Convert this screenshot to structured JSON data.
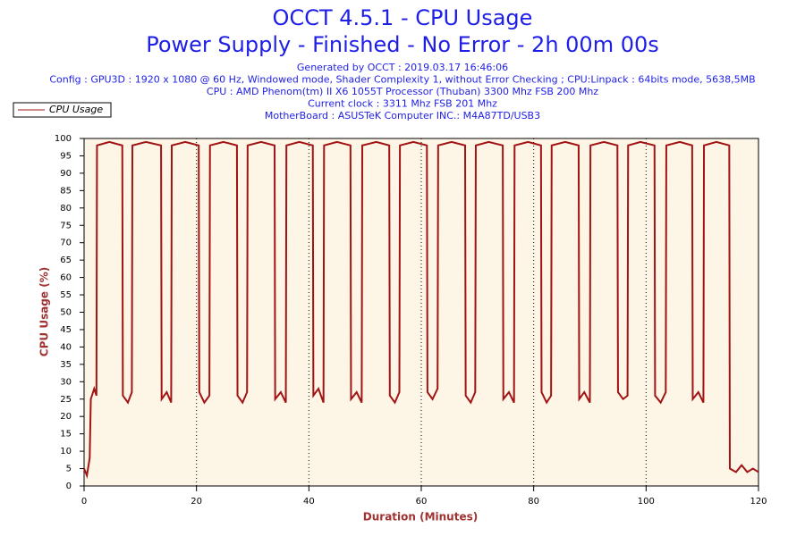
{
  "chart_data": {
    "type": "line",
    "title": "OCCT 4.5.1 - CPU Usage",
    "subtitle": "Power Supply - Finished - No Error - 2h 00m 00s",
    "info_lines": [
      "Generated by OCCT : 2019.03.17 16:46:06",
      "Config : GPU3D : 1920 x 1080 @ 60 Hz, Windowed mode, Shader Complexity 1, without Error Checking ; CPU:Linpack : 64bits mode, 5638,5MB",
      "CPU : AMD Phenom(tm) II X6 1055T Processor (Thuban) 3300 Mhz FSB 200 Mhz",
      "Current clock : 3311 Mhz FSB 201 Mhz",
      "MotherBoard : ASUSTeK Computer INC.: M4A87TD/USB3"
    ],
    "x_label": "Duration (Minutes)",
    "y_label": "CPU Usage (%)",
    "xlim": [
      0,
      120
    ],
    "xticks": [
      0,
      20,
      40,
      60,
      80,
      100,
      120
    ],
    "ylim": [
      0,
      100
    ],
    "yticks": [
      0,
      5,
      10,
      15,
      20,
      25,
      30,
      35,
      40,
      45,
      50,
      55,
      60,
      65,
      70,
      75,
      80,
      85,
      90,
      95,
      100
    ],
    "grid": true,
    "legend": "top-left",
    "x": [
      0,
      0.5,
      1,
      1.2,
      1.8,
      2.2,
      2.3,
      4.5,
      6.8,
      6.9,
      7.8,
      8.5,
      8.6,
      11,
      13.7,
      13.8,
      14.7,
      15.5,
      15.6,
      18,
      20.4,
      20.5,
      21.4,
      22.3,
      22.4,
      24.8,
      27.2,
      27.3,
      28.2,
      29,
      29.1,
      31.5,
      33.9,
      34,
      35,
      35.9,
      36,
      38.3,
      40.7,
      40.8,
      41.7,
      42.6,
      42.7,
      45,
      47.4,
      47.5,
      48.5,
      49.4,
      49.5,
      52,
      54.3,
      54.4,
      55.3,
      56.1,
      56.2,
      58.6,
      61,
      61.1,
      62,
      62.9,
      63,
      65.4,
      67.8,
      67.9,
      68.8,
      69.6,
      69.7,
      72,
      74.5,
      74.6,
      75.6,
      76.5,
      76.6,
      79,
      81.3,
      81.4,
      82.3,
      83.1,
      83.2,
      85.6,
      88,
      88.1,
      89,
      90,
      90.1,
      92.5,
      94.9,
      95,
      95.9,
      96.7,
      96.8,
      99,
      101.5,
      101.6,
      102.6,
      103.5,
      103.6,
      106,
      108.2,
      108.3,
      109.3,
      110.2,
      110.3,
      112.5,
      114.8,
      114.9,
      116,
      117,
      118,
      119,
      120
    ],
    "series": [
      {
        "name": "CPU Usage",
        "color": "#a01414",
        "values": [
          5,
          3,
          8,
          25,
          28,
          26,
          98,
          99,
          98,
          26,
          24,
          27,
          98,
          99,
          98,
          25,
          27,
          24,
          98,
          99,
          98,
          27,
          24,
          26,
          98,
          99,
          98,
          26,
          24,
          27,
          98,
          99,
          98,
          25,
          27,
          24,
          98,
          99,
          98,
          26,
          28,
          24,
          98,
          99,
          98,
          25,
          27,
          24,
          98,
          99,
          98,
          26,
          24,
          27,
          98,
          99,
          98,
          27,
          25,
          28,
          98,
          99,
          98,
          26,
          24,
          27,
          98,
          99,
          98,
          25,
          27,
          24,
          98,
          99,
          98,
          27,
          24,
          26,
          98,
          99,
          98,
          25,
          27,
          24,
          98,
          99,
          98,
          27,
          25,
          26,
          98,
          99,
          98,
          26,
          24,
          27,
          98,
          99,
          98,
          25,
          27,
          24,
          98,
          99,
          98,
          5,
          4,
          6,
          4,
          5,
          4
        ]
      }
    ]
  }
}
